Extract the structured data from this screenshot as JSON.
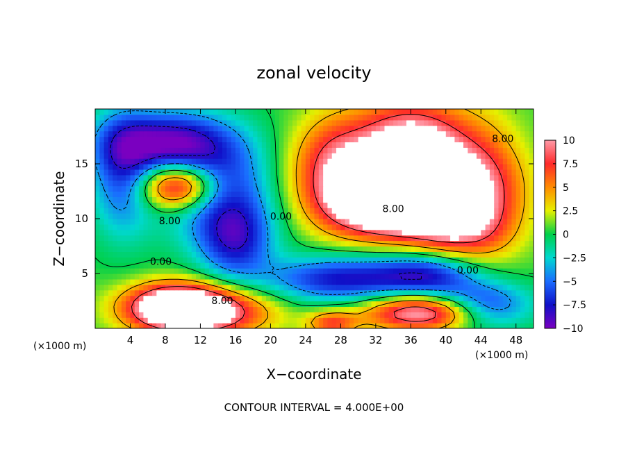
{
  "chart_data": {
    "type": "heatmap",
    "title": "zonal velocity",
    "xlabel": "X−coordinate",
    "ylabel": "Z−coordinate",
    "x_unit_label_left": "(×1000 m)",
    "x_unit_label_right": "(×1000 m)",
    "footnote": "CONTOUR INTERVAL = 4.000E+00",
    "xlim": [
      0,
      50
    ],
    "ylim": [
      0,
      20
    ],
    "x_ticks": [
      4,
      8,
      12,
      16,
      20,
      24,
      28,
      32,
      36,
      40,
      44,
      48
    ],
    "x_tick_labels": [
      "4",
      "8",
      "12",
      "16",
      "20",
      "24",
      "28",
      "32",
      "36",
      "40",
      "44",
      "48"
    ],
    "y_ticks": [
      5,
      10,
      15
    ],
    "y_tick_labels": [
      "5",
      "10",
      "15"
    ],
    "colorbar": {
      "range": [
        -10,
        10
      ],
      "ticks": [
        10,
        7.5,
        5,
        2.5,
        0,
        -2.5,
        -5,
        -7.5,
        -10
      ],
      "tick_labels": [
        "10",
        "7.5",
        "5",
        "2.5",
        "0",
        "−2.5",
        "−5",
        "−7.5",
        "−10"
      ]
    },
    "contour_interval": 4,
    "contour_labels": [
      {
        "text": "8.00",
        "x": 46.5,
        "z": 17
      },
      {
        "text": "8.00",
        "x": 34,
        "z": 10.6
      },
      {
        "text": "0.00",
        "x": 21.2,
        "z": 9.9
      },
      {
        "text": "8.00",
        "x": 8.5,
        "z": 9.5
      },
      {
        "text": "0.00",
        "x": 7.5,
        "z": 5.8
      },
      {
        "text": "8.00",
        "x": 14.5,
        "z": 2.2
      },
      {
        "text": "0.00",
        "x": 42.5,
        "z": 5
      }
    ],
    "field_features": [
      {
        "value": 12,
        "x": 36,
        "z": 16.5,
        "sx": 5,
        "sz": 3
      },
      {
        "value": 11,
        "x": 37,
        "z": 12.5,
        "sx": 6,
        "sz": 2.5
      },
      {
        "value": 9,
        "x": 32,
        "z": 11,
        "sx": 4.5,
        "sz": 2
      },
      {
        "value": 7,
        "x": 41,
        "z": 9,
        "sx": 4,
        "sz": 2
      },
      {
        "value": 6,
        "x": 27,
        "z": 15,
        "sx": 3,
        "sz": 3
      },
      {
        "value": 4,
        "x": 45,
        "z": 13,
        "sx": 3,
        "sz": 4
      },
      {
        "value": -9,
        "x": 8,
        "z": 17,
        "sx": 5,
        "sz": 2
      },
      {
        "value": -7,
        "x": 14,
        "z": 13,
        "sx": 5,
        "sz": 3.5
      },
      {
        "value": -6,
        "x": 3,
        "z": 14,
        "sx": 2.5,
        "sz": 4
      },
      {
        "value": -7,
        "x": 16,
        "z": 8,
        "sx": 3,
        "sz": 2.5
      },
      {
        "value": 12,
        "x": 9.5,
        "z": 13,
        "sx": 3,
        "sz": 1.5
      },
      {
        "value": -8,
        "x": 28,
        "z": 4.5,
        "sx": 6,
        "sz": 1.5
      },
      {
        "value": -7,
        "x": 38,
        "z": 5,
        "sx": 4,
        "sz": 1.5
      },
      {
        "value": -9,
        "x": 44,
        "z": 2,
        "sx": 4,
        "sz": 1.5
      },
      {
        "value": 12,
        "x": 9,
        "z": 2,
        "sx": 4,
        "sz": 1.5
      },
      {
        "value": 9,
        "x": 13,
        "z": 1.5,
        "sx": 5,
        "sz": 1.5
      },
      {
        "value": 12,
        "x": 38,
        "z": 1.5,
        "sx": 5,
        "sz": 1.2
      },
      {
        "value": 6,
        "x": 27,
        "z": 0.5,
        "sx": 2,
        "sz": 0.8
      },
      {
        "value": 1.5,
        "x": 22,
        "z": 14,
        "sx": 3,
        "sz": 3
      }
    ]
  }
}
